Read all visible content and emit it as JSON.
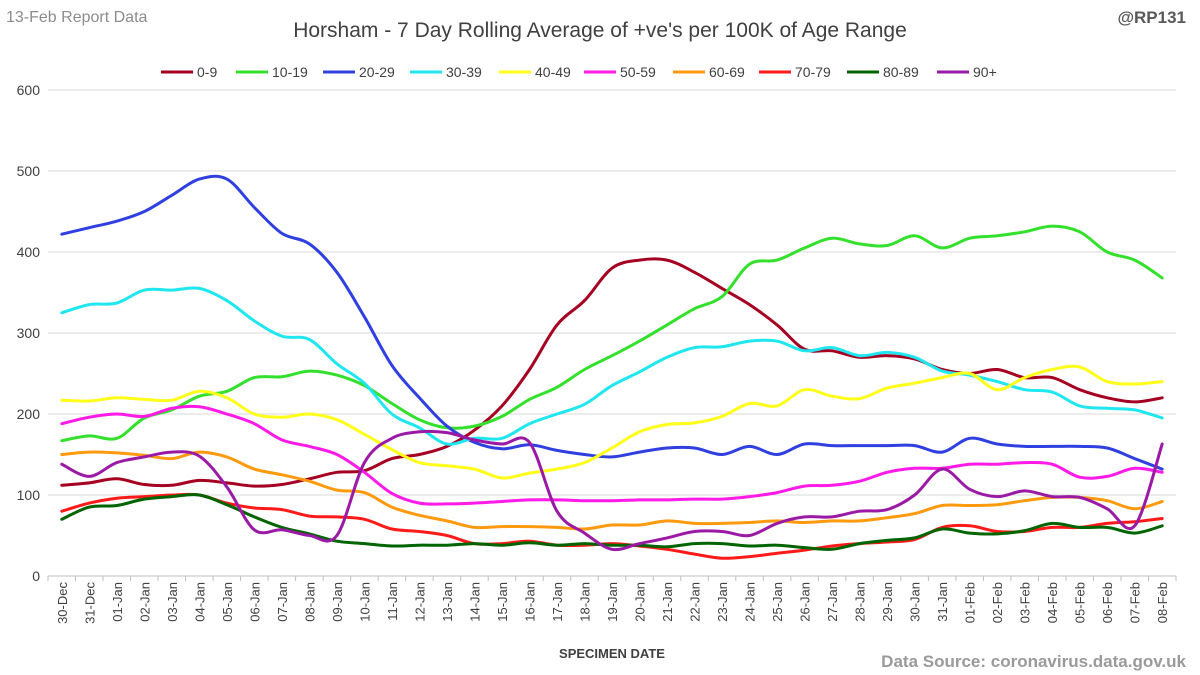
{
  "header": {
    "report_label": "13-Feb Report Data",
    "handle": "@RP131"
  },
  "footer": {
    "source": "Data Source: coronavirus.data.gov.uk"
  },
  "chart_data": {
    "type": "line",
    "title": "Horsham - 7 Day Rolling Average of +ve's per 100K of Age Range",
    "xlabel": "SPECIMEN DATE",
    "ylabel": "",
    "ylim": [
      0,
      600
    ],
    "yticks": [
      0,
      100,
      200,
      300,
      400,
      500,
      600
    ],
    "grid": true,
    "legend_position": "top",
    "categories": [
      "30-Dec",
      "31-Dec",
      "01-Jan",
      "02-Jan",
      "03-Jan",
      "04-Jan",
      "05-Jan",
      "06-Jan",
      "07-Jan",
      "08-Jan",
      "09-Jan",
      "10-Jan",
      "11-Jan",
      "12-Jan",
      "13-Jan",
      "14-Jan",
      "15-Jan",
      "16-Jan",
      "17-Jan",
      "18-Jan",
      "19-Jan",
      "20-Jan",
      "21-Jan",
      "22-Jan",
      "23-Jan",
      "24-Jan",
      "25-Jan",
      "26-Jan",
      "27-Jan",
      "28-Jan",
      "29-Jan",
      "30-Jan",
      "31-Jan",
      "01-Feb",
      "02-Feb",
      "03-Feb",
      "04-Feb",
      "05-Feb",
      "06-Feb",
      "07-Feb",
      "08-Feb"
    ],
    "series": [
      {
        "name": "0-9",
        "color": "#a50021",
        "values": [
          112,
          115,
          120,
          113,
          112,
          118,
          115,
          111,
          113,
          120,
          128,
          130,
          145,
          150,
          160,
          180,
          210,
          255,
          310,
          340,
          380,
          390,
          390,
          375,
          355,
          335,
          310,
          280,
          278,
          270,
          272,
          268,
          255,
          250,
          255,
          245,
          245,
          230,
          220,
          215,
          220
        ]
      },
      {
        "name": "10-19",
        "color": "#33e02b",
        "values": [
          167,
          173,
          170,
          195,
          205,
          222,
          228,
          245,
          246,
          253,
          248,
          235,
          213,
          193,
          183,
          185,
          197,
          218,
          233,
          255,
          272,
          290,
          310,
          330,
          345,
          385,
          390,
          405,
          417,
          410,
          408,
          420,
          405,
          417,
          420,
          425,
          432,
          425,
          400,
          390,
          368
        ]
      },
      {
        "name": "20-29",
        "color": "#3040e0",
        "values": [
          422,
          430,
          438,
          450,
          470,
          490,
          490,
          455,
          423,
          410,
          375,
          320,
          260,
          220,
          185,
          165,
          157,
          162,
          155,
          150,
          147,
          153,
          158,
          158,
          150,
          160,
          150,
          163,
          161,
          161,
          161,
          161,
          153,
          170,
          163,
          160,
          160,
          160,
          158,
          145,
          132
        ]
      },
      {
        "name": "30-39",
        "color": "#1fe6ef",
        "values": [
          325,
          335,
          337,
          353,
          353,
          355,
          340,
          315,
          296,
          292,
          262,
          238,
          200,
          183,
          163,
          170,
          170,
          188,
          200,
          212,
          235,
          252,
          270,
          282,
          283,
          290,
          290,
          278,
          282,
          272,
          276,
          270,
          253,
          248,
          240,
          230,
          227,
          210,
          207,
          205,
          195
        ]
      },
      {
        "name": "40-49",
        "color": "#ffff1a",
        "values": [
          217,
          216,
          220,
          218,
          217,
          228,
          220,
          200,
          196,
          200,
          193,
          175,
          156,
          140,
          136,
          132,
          121,
          127,
          132,
          140,
          158,
          178,
          187,
          189,
          197,
          213,
          210,
          230,
          222,
          219,
          232,
          238,
          245,
          250,
          230,
          245,
          255,
          258,
          240,
          237,
          240
        ]
      },
      {
        "name": "50-59",
        "color": "#ff1ae8",
        "values": [
          188,
          196,
          200,
          197,
          207,
          209,
          200,
          188,
          168,
          160,
          150,
          128,
          102,
          90,
          89,
          90,
          92,
          94,
          94,
          93,
          93,
          94,
          94,
          95,
          95,
          98,
          103,
          111,
          112,
          117,
          128,
          133,
          133,
          138,
          138,
          140,
          138,
          122,
          123,
          133,
          128
        ]
      },
      {
        "name": "60-69",
        "color": "#ff9a0f",
        "values": [
          150,
          153,
          152,
          149,
          145,
          153,
          147,
          132,
          125,
          117,
          106,
          103,
          85,
          75,
          68,
          60,
          61,
          61,
          60,
          58,
          63,
          63,
          68,
          65,
          65,
          66,
          68,
          66,
          68,
          68,
          72,
          77,
          87,
          87,
          88,
          93,
          97,
          97,
          93,
          83,
          92
        ]
      },
      {
        "name": "70-79",
        "color": "#ff1a1a",
        "values": [
          80,
          90,
          96,
          98,
          100,
          100,
          90,
          84,
          82,
          74,
          73,
          70,
          58,
          55,
          50,
          40,
          40,
          43,
          38,
          38,
          40,
          37,
          33,
          27,
          22,
          24,
          28,
          32,
          37,
          40,
          42,
          45,
          60,
          62,
          55,
          55,
          60,
          60,
          65,
          67,
          71
        ]
      },
      {
        "name": "80-89",
        "color": "#006400",
        "values": [
          70,
          85,
          87,
          95,
          98,
          100,
          88,
          73,
          60,
          52,
          43,
          40,
          37,
          38,
          38,
          40,
          38,
          41,
          38,
          40,
          38,
          38,
          36,
          40,
          40,
          37,
          38,
          35,
          33,
          40,
          44,
          47,
          58,
          53,
          52,
          56,
          65,
          60,
          60,
          53,
          62
        ]
      },
      {
        "name": "90+",
        "color": "#9b1aa5",
        "values": [
          138,
          123,
          140,
          147,
          153,
          148,
          110,
          57,
          57,
          50,
          50,
          140,
          170,
          178,
          177,
          168,
          163,
          165,
          80,
          53,
          33,
          40,
          47,
          55,
          55,
          50,
          65,
          73,
          73,
          80,
          82,
          100,
          132,
          107,
          98,
          105,
          98,
          97,
          83,
          62,
          163
        ]
      }
    ]
  }
}
